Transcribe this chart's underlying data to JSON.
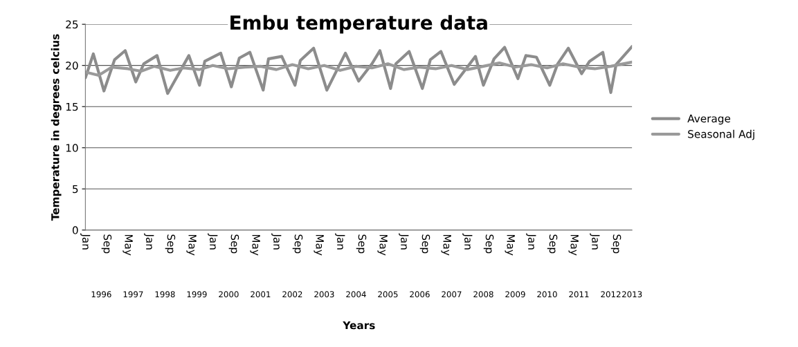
{
  "chart_data": {
    "type": "line",
    "title": "Embu temperature data",
    "xlabel": "Years",
    "ylabel": "Temperature in degrees celcius",
    "ylim": [
      0,
      25
    ],
    "yticks": [
      0,
      5,
      10,
      15,
      20,
      25
    ],
    "xlim": [
      "1996-01",
      "2013-03"
    ],
    "grid": "y",
    "legend": "right",
    "marker": "none",
    "line_style": "solid",
    "xticks": [
      {
        "value": "1996-01",
        "label": "Jan"
      },
      {
        "value": "1996-09",
        "label": "Sep"
      },
      {
        "value": "1997-05",
        "label": "May"
      },
      {
        "value": "1998-01",
        "label": "Jan"
      },
      {
        "value": "1998-09",
        "label": "Sep"
      },
      {
        "value": "1999-05",
        "label": "May"
      },
      {
        "value": "2000-01",
        "label": "Jan"
      },
      {
        "value": "2000-09",
        "label": "Sep"
      },
      {
        "value": "2001-05",
        "label": "May"
      },
      {
        "value": "2002-01",
        "label": "Jan"
      },
      {
        "value": "2002-09",
        "label": "Sep"
      },
      {
        "value": "2003-05",
        "label": "May"
      },
      {
        "value": "2004-01",
        "label": "Jan"
      },
      {
        "value": "2004-09",
        "label": "Sep"
      },
      {
        "value": "2005-05",
        "label": "May"
      },
      {
        "value": "2006-01",
        "label": "Jan"
      },
      {
        "value": "2006-09",
        "label": "Sep"
      },
      {
        "value": "2007-05",
        "label": "May"
      },
      {
        "value": "2008-01",
        "label": "Jan"
      },
      {
        "value": "2008-09",
        "label": "Sep"
      },
      {
        "value": "2009-05",
        "label": "May"
      },
      {
        "value": "2010-01",
        "label": "Jan"
      },
      {
        "value": "2010-09",
        "label": "Sep"
      },
      {
        "value": "2011-05",
        "label": "May"
      },
      {
        "value": "2012-01",
        "label": "Jan"
      },
      {
        "value": "2012-09",
        "label": "Sep"
      }
    ],
    "x2ticks": [
      {
        "value": "1996-07",
        "label": "1996"
      },
      {
        "value": "1997-07",
        "label": "1997"
      },
      {
        "value": "1998-07",
        "label": "1998"
      },
      {
        "value": "1999-07",
        "label": "1999"
      },
      {
        "value": "2000-07",
        "label": "2000"
      },
      {
        "value": "2001-07",
        "label": "2001"
      },
      {
        "value": "2002-07",
        "label": "2002"
      },
      {
        "value": "2003-07",
        "label": "2003"
      },
      {
        "value": "2004-07",
        "label": "2004"
      },
      {
        "value": "2005-07",
        "label": "2005"
      },
      {
        "value": "2006-07",
        "label": "2006"
      },
      {
        "value": "2007-07",
        "label": "2007"
      },
      {
        "value": "2008-07",
        "label": "2008"
      },
      {
        "value": "2009-07",
        "label": "2009"
      },
      {
        "value": "2010-07",
        "label": "2010"
      },
      {
        "value": "2011-07",
        "label": "2011"
      },
      {
        "value": "2012-07",
        "label": "2012"
      },
      {
        "value": "2013-03",
        "label": "2013"
      }
    ],
    "x2lim": [
      "1996-01",
      "2013-03"
    ],
    "series": [
      {
        "name": "Average",
        "color": "#8c8c8c",
        "x": [
          "1996-01",
          "1996-04",
          "1996-08",
          "1996-12",
          "1997-04",
          "1997-08",
          "1997-11",
          "1998-04",
          "1998-08",
          "1999-04",
          "1999-08",
          "1999-10",
          "2000-04",
          "2000-08",
          "2000-11",
          "2001-03",
          "2001-08",
          "2001-10",
          "2002-03",
          "2002-08",
          "2002-10",
          "2003-03",
          "2003-08",
          "2004-03",
          "2004-08",
          "2005-01",
          "2005-04",
          "2005-08",
          "2005-10",
          "2006-03",
          "2006-08",
          "2006-11",
          "2007-03",
          "2007-08",
          "2008-04",
          "2008-07",
          "2008-11",
          "2009-03",
          "2009-08",
          "2009-11",
          "2010-03",
          "2010-08",
          "2010-11",
          "2011-03",
          "2011-08",
          "2011-11",
          "2012-04",
          "2012-07",
          "2012-09",
          "2013-03"
        ],
        "values": [
          18.5,
          21.4,
          16.9,
          20.7,
          21.8,
          18.0,
          20.2,
          21.2,
          16.6,
          21.2,
          17.6,
          20.5,
          21.5,
          17.4,
          20.9,
          21.6,
          17.0,
          20.8,
          21.1,
          17.6,
          20.6,
          22.1,
          17.0,
          21.5,
          18.1,
          20.2,
          21.8,
          17.2,
          20.2,
          21.7,
          17.2,
          20.7,
          21.7,
          17.7,
          21.1,
          17.6,
          20.8,
          22.2,
          18.4,
          21.2,
          21.0,
          17.6,
          20.2,
          22.1,
          19.0,
          20.5,
          21.6,
          16.7,
          20.1,
          22.3
        ]
      },
      {
        "name": "Seasonal Adj",
        "color": "#9a9a9a",
        "x": [
          "1996-01",
          "1996-06",
          "1996-11",
          "1997-05",
          "1997-10",
          "1998-03",
          "1998-09",
          "1999-02",
          "1999-08",
          "2000-01",
          "2000-07",
          "2001-01",
          "2001-07",
          "2002-01",
          "2002-07",
          "2003-01",
          "2003-07",
          "2004-01",
          "2004-07",
          "2005-01",
          "2005-07",
          "2006-01",
          "2006-07",
          "2007-01",
          "2007-07",
          "2008-01",
          "2008-07",
          "2009-01",
          "2009-07",
          "2010-01",
          "2010-07",
          "2011-01",
          "2011-07",
          "2012-01",
          "2012-07",
          "2013-03"
        ],
        "values": [
          19.2,
          18.8,
          19.8,
          19.6,
          19.3,
          19.9,
          19.4,
          19.7,
          19.5,
          20.0,
          19.6,
          19.8,
          19.9,
          19.5,
          20.1,
          19.6,
          20.0,
          19.4,
          19.9,
          19.7,
          20.2,
          19.5,
          19.8,
          19.6,
          20.0,
          19.5,
          19.9,
          20.3,
          19.8,
          20.1,
          19.7,
          20.2,
          19.8,
          19.6,
          19.9,
          20.4
        ]
      }
    ]
  }
}
